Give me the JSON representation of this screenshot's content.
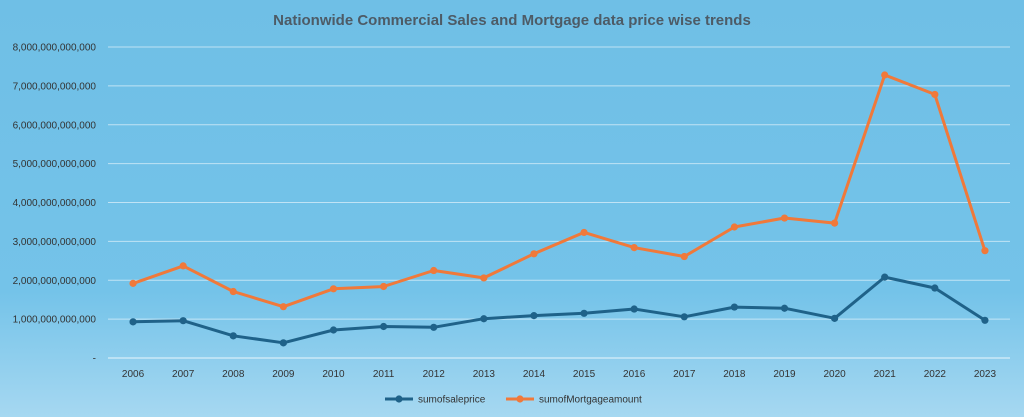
{
  "chart_data": {
    "type": "line",
    "title": "Nationwide Commercial Sales and Mortgage data price wise trends",
    "categories": [
      "2006",
      "2007",
      "2008",
      "2009",
      "2010",
      "2011",
      "2012",
      "2013",
      "2014",
      "2015",
      "2016",
      "2017",
      "2018",
      "2019",
      "2020",
      "2021",
      "2022",
      "2023"
    ],
    "ylim": [
      0,
      8000000000000
    ],
    "ytick_values": [
      0,
      1000000000000,
      2000000000000,
      3000000000000,
      4000000000000,
      5000000000000,
      6000000000000,
      7000000000000,
      8000000000000
    ],
    "ytick_labels": [
      "-",
      "1,000,000,000,000",
      "2,000,000,000,000",
      "3,000,000,000,000",
      "4,000,000,000,000",
      "5,000,000,000,000",
      "6,000,000,000,000",
      "7,000,000,000,000",
      "8,000,000,000,000"
    ],
    "grid": true,
    "legend_position": "bottom",
    "series": [
      {
        "name": "sumofsaleprice",
        "color": "#1f6289",
        "values": [
          930000000000,
          960000000000,
          570000000000,
          390000000000,
          720000000000,
          810000000000,
          790000000000,
          1010000000000,
          1090000000000,
          1150000000000,
          1260000000000,
          1060000000000,
          1310000000000,
          1280000000000,
          1020000000000,
          2080000000000,
          1800000000000,
          970000000000
        ]
      },
      {
        "name": "sumofMortgageamount",
        "color": "#f0793a",
        "values": [
          1920000000000,
          2370000000000,
          1710000000000,
          1320000000000,
          1780000000000,
          1840000000000,
          2250000000000,
          2060000000000,
          2680000000000,
          3230000000000,
          2840000000000,
          2610000000000,
          3370000000000,
          3600000000000,
          3470000000000,
          7280000000000,
          6780000000000,
          2760000000000
        ]
      }
    ]
  }
}
